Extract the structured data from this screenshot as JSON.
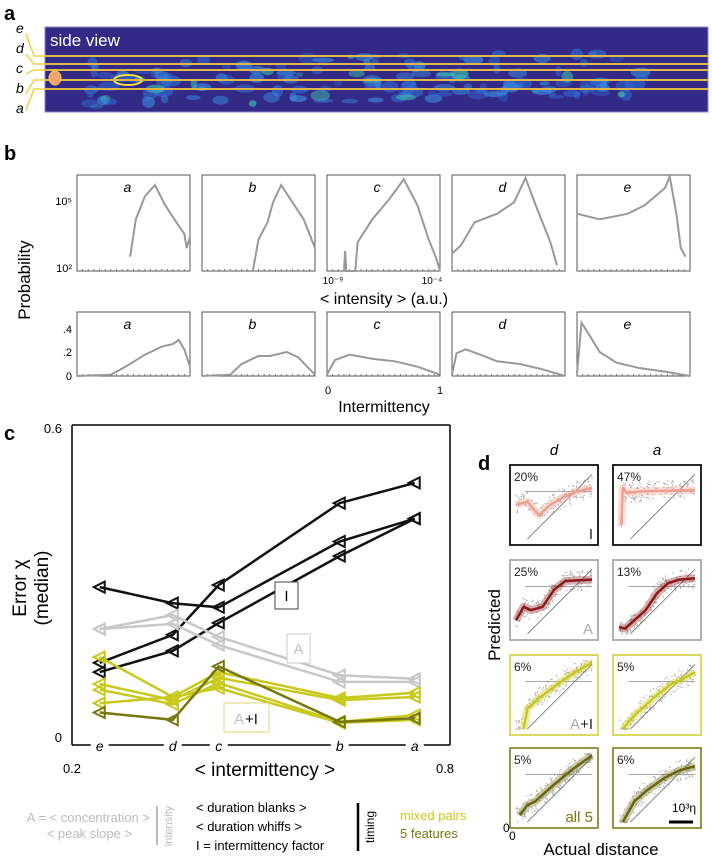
{
  "panel_labels": {
    "a": "a",
    "b": "b",
    "c": "c",
    "d": "d"
  },
  "panel_a": {
    "title": "side view",
    "line_labels": [
      "e",
      "d",
      "c",
      "b",
      "a"
    ],
    "colors": {
      "background": "#332a88",
      "line": "#e0b84a",
      "source": "#f4a070"
    }
  },
  "panel_b": {
    "ylabel": "Probability",
    "top_xlabel": "< intensity > (a.u.)",
    "top_yticks": [
      "10⁵",
      "10²"
    ],
    "top_xticks": [
      "10⁻⁹",
      "10⁻⁴"
    ],
    "bottom_xlabel": "Intermittency",
    "bottom_yticks": [
      ".4",
      ".2",
      "0"
    ],
    "bottom_xticks": [
      "0",
      "1"
    ]
  },
  "panel_c": {
    "ylabel_1": "Error χ",
    "ylabel_2": "(median)",
    "xlabel": "< intermittency >",
    "y_top": "0.6",
    "y_bottom": "0",
    "x_left": "0.2",
    "x_right": "0.8",
    "box_labels": {
      "I": "I",
      "A": "A",
      "A_plus": "A",
      "plus_I": "+I"
    }
  },
  "panel_d": {
    "col_labels": [
      "d",
      "a"
    ],
    "ylabel": "Predicted",
    "xlabel": "Actual distance",
    "zero_x": "0",
    "zero_y": "0",
    "row_labels": [
      "I",
      "A",
      "A+I",
      "all 5"
    ],
    "percents": [
      [
        "20%",
        "47%"
      ],
      [
        "25%",
        "13%"
      ],
      [
        "6%",
        "5%"
      ],
      [
        "5%",
        "6%"
      ]
    ],
    "scalebar": "10³η"
  },
  "legend": {
    "a_def": "A = < concentration >",
    "peak_slope": "< peak slope >",
    "intensity": "intensity",
    "blanks": "< duration blanks >",
    "whiffs": "< duration whiffs >",
    "i_def": "I = intermittency factor",
    "timing": "timing",
    "mixed": "mixed pairs",
    "five": "5 features"
  },
  "chart_data": [
    {
      "id": "b-top",
      "type": "line",
      "xscale": "log10",
      "yscale": "log10",
      "xlabel": "< intensity > (a.u.)",
      "ylabel": "Probability",
      "xlim": [
        -9.3,
        -3.5
      ],
      "ylim": [
        2,
        5.35
      ],
      "color": "#999999",
      "panels": [
        {
          "label": "a",
          "x": [
            -6.57,
            -6.28,
            -5.82,
            -5.3,
            -4.78,
            -4.2,
            -3.79,
            -3.67,
            -3.5
          ],
          "y": [
            2.5,
            3.8,
            4.6,
            5.0,
            4.3,
            3.7,
            3.3,
            2.8,
            3.2
          ]
        },
        {
          "label": "b",
          "x": [
            -6.69,
            -6.4,
            -5.94,
            -5.65,
            -5.24,
            -4.66,
            -4.08,
            -3.5
          ],
          "y": [
            2.0,
            3.1,
            3.7,
            4.4,
            5.0,
            4.4,
            3.8,
            2.8
          ]
        },
        {
          "label": "c",
          "x": [
            -8.43,
            -8.37,
            -8.31,
            -7.85,
            -7.73,
            -6.98,
            -6.11,
            -5.36,
            -4.66,
            -4.08,
            -3.67,
            -3.5
          ],
          "y": [
            2.0,
            2.7,
            2.0,
            2.0,
            3.0,
            3.8,
            4.5,
            5.2,
            4.3,
            3.1,
            2.4,
            2.0
          ]
        },
        {
          "label": "d",
          "x": [
            -9.3,
            -8.84,
            -8.14,
            -6.98,
            -6.11,
            -5.53,
            -4.95,
            -4.25,
            -3.91
          ],
          "y": [
            2.6,
            2.9,
            3.7,
            4.0,
            4.4,
            5.25,
            4.2,
            3.0,
            2.2
          ]
        },
        {
          "label": "e",
          "x": [
            -9.3,
            -8.14,
            -6.69,
            -5.82,
            -4.78,
            -4.54,
            -4.2,
            -3.97,
            -3.73
          ],
          "y": [
            4.0,
            3.8,
            4.0,
            4.3,
            4.9,
            5.3,
            4.0,
            2.8,
            2.5
          ]
        }
      ]
    },
    {
      "id": "b-bottom",
      "type": "line",
      "xlabel": "Intermittency",
      "ylabel": "Probability",
      "xlim": [
        0,
        1
      ],
      "ylim": [
        0,
        0.48
      ],
      "color": "#999999",
      "panels": [
        {
          "label": "a",
          "x": [
            0,
            0.3,
            0.45,
            0.6,
            0.75,
            0.85,
            0.9,
            0.95,
            1
          ],
          "y": [
            0,
            0.01,
            0.08,
            0.16,
            0.22,
            0.24,
            0.27,
            0.2,
            0.07
          ]
        },
        {
          "label": "b",
          "x": [
            0,
            0.25,
            0.35,
            0.5,
            0.6,
            0.75,
            0.85,
            1
          ],
          "y": [
            0,
            0.01,
            0.09,
            0.15,
            0.15,
            0.18,
            0.14,
            0.01
          ]
        },
        {
          "label": "c",
          "x": [
            0,
            0.07,
            0.2,
            0.4,
            0.6,
            0.8,
            1
          ],
          "y": [
            0.01,
            0.12,
            0.16,
            0.13,
            0.11,
            0.07,
            0.01
          ]
        },
        {
          "label": "d",
          "x": [
            0,
            0.04,
            0.12,
            0.25,
            0.4,
            0.6,
            0.8,
            1
          ],
          "y": [
            0.01,
            0.17,
            0.2,
            0.16,
            0.11,
            0.09,
            0.05,
            0
          ]
        },
        {
          "label": "e",
          "x": [
            0,
            0.04,
            0.1,
            0.2,
            0.35,
            0.55,
            0.8,
            1
          ],
          "y": [
            0.02,
            0.4,
            0.32,
            0.18,
            0.1,
            0.06,
            0.03,
            0
          ]
        }
      ]
    },
    {
      "id": "c",
      "type": "line",
      "xlabel": "< intermittency >",
      "ylabel": "Error χ (median)",
      "xlim": [
        0.2,
        0.8
      ],
      "ylim": [
        0,
        0.6
      ],
      "x_categories": [
        "e",
        "d",
        "c",
        "b",
        "a"
      ],
      "x": [
        0.244,
        0.36,
        0.433,
        0.625,
        0.744
      ],
      "series": [
        {
          "group": "timing",
          "color": "#111111",
          "values": [
            0.149,
            0.203,
            0.299,
            0.457,
            0.496
          ]
        },
        {
          "group": "timing",
          "color": "#111111",
          "values": [
            0.131,
            0.172,
            0.226,
            0.355,
            0.427
          ]
        },
        {
          "group": "timing",
          "color": "#111111",
          "values": [
            0.295,
            0.264,
            0.256,
            0.383,
            0.427
          ]
        },
        {
          "group": "intensity",
          "color": "#c8c8c8",
          "values": [
            0.214,
            0.241,
            0.199,
            0.125,
            0.118
          ]
        },
        {
          "group": "intensity",
          "color": "#c8c8c8",
          "values": [
            0.214,
            0.224,
            0.183,
            0.112,
            0.112
          ]
        },
        {
          "group": "mixed pairs",
          "color": "#c9c91c",
          "values": [
            0.16,
            0.083,
            0.131,
            0.081,
            0.091
          ]
        },
        {
          "group": "mixed pairs",
          "color": "#c9c91c",
          "values": [
            0.108,
            0.077,
            0.12,
            0.077,
            0.083
          ]
        },
        {
          "group": "mixed pairs",
          "color": "#c9c91c",
          "values": [
            0.097,
            0.069,
            0.11,
            0.035,
            0.048
          ]
        },
        {
          "group": "mixed pairs",
          "color": "#c9c91c",
          "values": [
            0.071,
            0.083,
            0.1,
            0.033,
            0.039
          ]
        },
        {
          "group": "5 features",
          "color": "#77770f",
          "values": [
            0.053,
            0.039,
            0.142,
            0.035,
            0.042
          ]
        }
      ]
    },
    {
      "id": "d",
      "type": "scatter",
      "xlabel": "Actual distance",
      "ylabel": "Predicted",
      "xlim": [
        0,
        1
      ],
      "ylim": [
        0,
        1
      ],
      "reference_level": 0.7,
      "rows": [
        {
          "model": "I",
          "color": "#f0a090",
          "border": "#111111",
          "curves": [
            {
              "x": [
                0,
                0.15,
                0.3,
                0.45,
                0.6,
                0.8,
                1
              ],
              "y": [
                0.5,
                0.55,
                0.35,
                0.5,
                0.6,
                0.7,
                0.75
              ]
            },
            {
              "x": [
                0.03,
                0.05,
                0.1,
                0.3,
                1
              ],
              "y": [
                0.2,
                0.75,
                0.68,
                0.7,
                0.72
              ]
            }
          ]
        },
        {
          "model": "A",
          "color": "#8b1a1a",
          "border": "#aaaaaa",
          "curves": [
            {
              "x": [
                0,
                0.1,
                0.2,
                0.35,
                0.5,
                0.65,
                1
              ],
              "y": [
                0.2,
                0.4,
                0.35,
                0.4,
                0.65,
                0.78,
                0.8
              ]
            },
            {
              "x": [
                0,
                0.08,
                0.2,
                0.35,
                0.5,
                0.65,
                0.8,
                1
              ],
              "y": [
                0.1,
                0.08,
                0.2,
                0.35,
                0.6,
                0.75,
                0.8,
                0.82
              ]
            }
          ]
        },
        {
          "model": "A+I",
          "color": "#c8c820",
          "border": "#d6d650",
          "curves": [
            {
              "x": [
                0.1,
                0.15,
                0.3,
                0.5,
                0.7,
                1
              ],
              "y": [
                0,
                0.3,
                0.45,
                0.62,
                0.78,
                0.98
              ]
            },
            {
              "x": [
                0.05,
                0.2,
                0.5,
                0.7,
                0.85,
                1
              ],
              "y": [
                0,
                0.2,
                0.5,
                0.67,
                0.74,
                0.84
              ]
            }
          ]
        },
        {
          "model": "all 5",
          "color": "#66660f",
          "border": "#8a8a30",
          "curves": [
            {
              "x": [
                0.05,
                0.15,
                0.25,
                0.5,
                0.75,
                1
              ],
              "y": [
                0.1,
                0.25,
                0.3,
                0.55,
                0.78,
                0.98
              ]
            },
            {
              "x": [
                0.05,
                0.2,
                0.35,
                0.6,
                0.8,
                1
              ],
              "y": [
                0,
                0.3,
                0.45,
                0.65,
                0.76,
                0.82
              ]
            }
          ]
        }
      ]
    }
  ]
}
